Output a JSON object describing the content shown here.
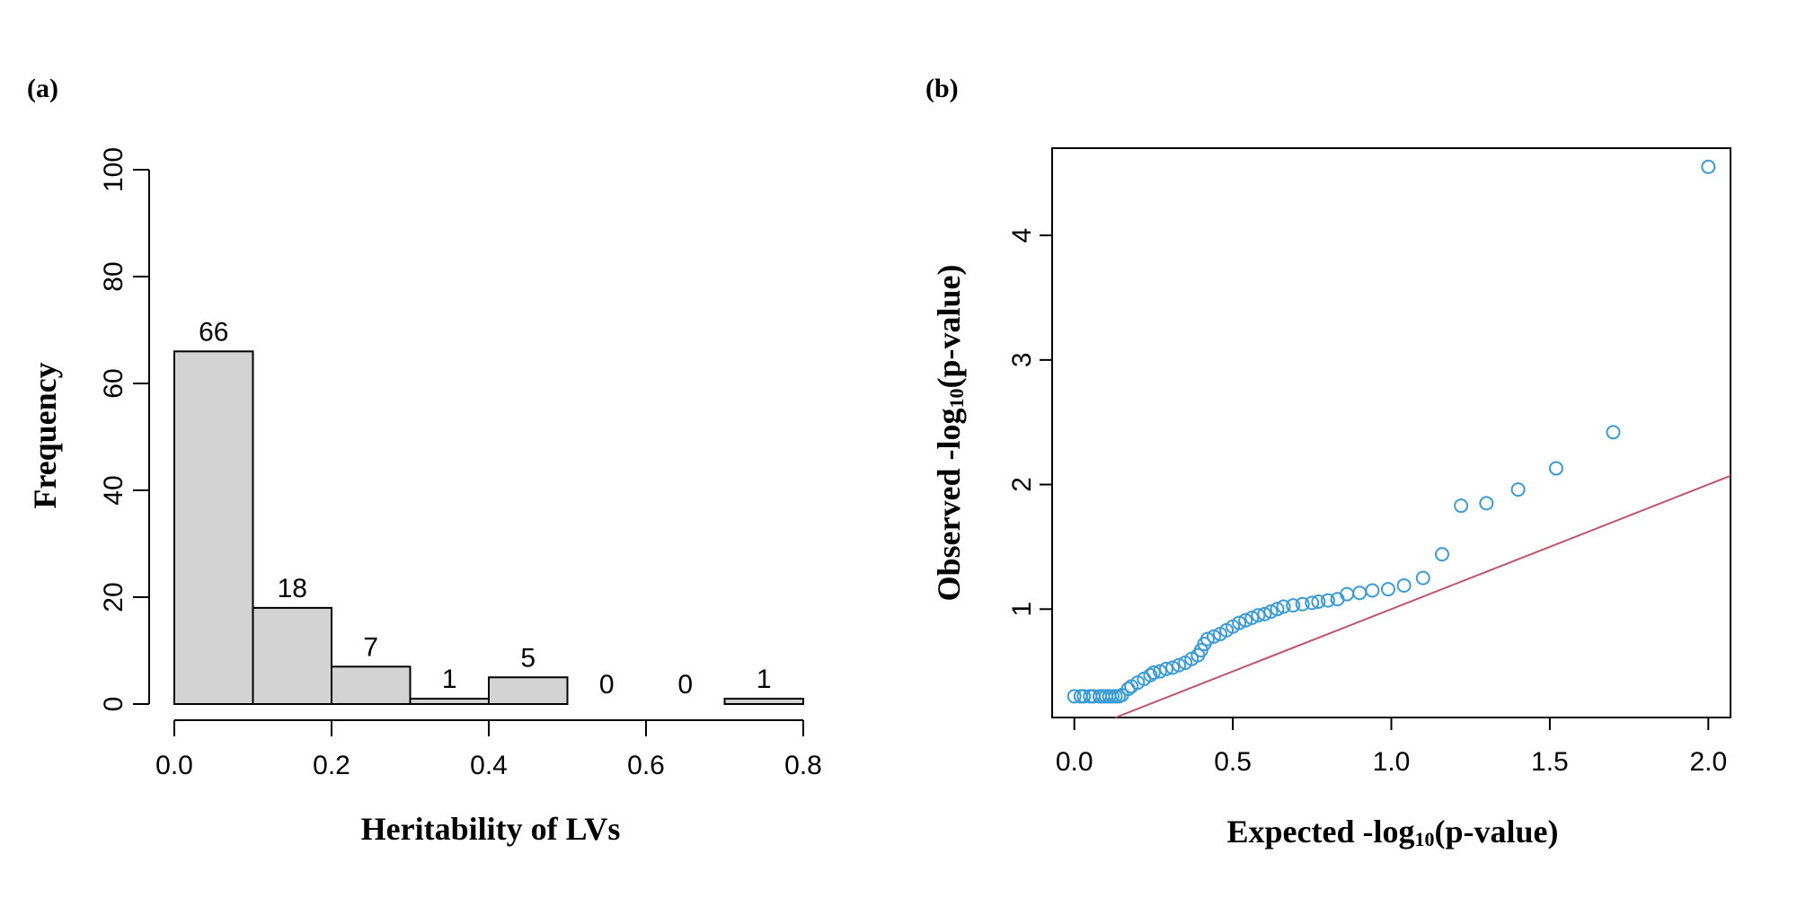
{
  "chart_data": [
    {
      "panel_label": "(a)",
      "type": "bar",
      "xlabel": "Heritability of LVs",
      "ylabel": "Frequency",
      "bins": [
        [
          0.0,
          0.1
        ],
        [
          0.1,
          0.2
        ],
        [
          0.2,
          0.3
        ],
        [
          0.3,
          0.4
        ],
        [
          0.4,
          0.5
        ],
        [
          0.5,
          0.6
        ],
        [
          0.6,
          0.7
        ],
        [
          0.7,
          0.8
        ]
      ],
      "values": [
        66,
        18,
        7,
        1,
        5,
        0,
        0,
        1
      ],
      "data_labels": [
        "66",
        "18",
        "7",
        "1",
        "5",
        "0",
        "0",
        "1"
      ],
      "xlim": [
        0,
        0.8
      ],
      "ylim": [
        0,
        100
      ],
      "xticks": [
        0.0,
        0.2,
        0.4,
        0.6,
        0.8
      ],
      "xtick_labels": [
        "0.0",
        "0.2",
        "0.4",
        "0.6",
        "0.8"
      ],
      "yticks": [
        0,
        20,
        40,
        60,
        80,
        100
      ],
      "ytick_labels": [
        "0",
        "20",
        "40",
        "60",
        "80",
        "100"
      ],
      "bar_color": "#d3d3d3"
    },
    {
      "panel_label": "(b)",
      "type": "scatter",
      "xlabel": "Expected -log10(p-value)",
      "xlabel_parts": [
        "Expected -log",
        "10",
        "(p-value)"
      ],
      "ylabel": "Observed -log10(p-value)",
      "ylabel_parts": [
        "Observed -log",
        "10",
        "(p-value)"
      ],
      "xlim": [
        -0.07,
        2.07
      ],
      "ylim": [
        0.13,
        4.7
      ],
      "xticks": [
        0.0,
        0.5,
        1.0,
        1.5,
        2.0
      ],
      "xtick_labels": [
        "0.0",
        "0.5",
        "1.0",
        "1.5",
        "2.0"
      ],
      "yticks": [
        1,
        2,
        3,
        4
      ],
      "ytick_labels": [
        "1",
        "2",
        "3",
        "4"
      ],
      "point_color": "#3a9bd5",
      "reference_line_color": "#c0546b",
      "reference_line": {
        "slope": 1,
        "intercept": 0
      },
      "points": [
        [
          0.0,
          0.3
        ],
        [
          0.02,
          0.3
        ],
        [
          0.03,
          0.3
        ],
        [
          0.05,
          0.3
        ],
        [
          0.06,
          0.3
        ],
        [
          0.08,
          0.3
        ],
        [
          0.09,
          0.3
        ],
        [
          0.1,
          0.3
        ],
        [
          0.11,
          0.3
        ],
        [
          0.12,
          0.3
        ],
        [
          0.13,
          0.3
        ],
        [
          0.14,
          0.3
        ],
        [
          0.15,
          0.31
        ],
        [
          0.17,
          0.36
        ],
        [
          0.18,
          0.38
        ],
        [
          0.2,
          0.41
        ],
        [
          0.22,
          0.44
        ],
        [
          0.24,
          0.47
        ],
        [
          0.25,
          0.49
        ],
        [
          0.27,
          0.5
        ],
        [
          0.29,
          0.52
        ],
        [
          0.31,
          0.53
        ],
        [
          0.33,
          0.55
        ],
        [
          0.35,
          0.57
        ],
        [
          0.37,
          0.6
        ],
        [
          0.39,
          0.63
        ],
        [
          0.4,
          0.67
        ],
        [
          0.41,
          0.72
        ],
        [
          0.42,
          0.76
        ],
        [
          0.44,
          0.78
        ],
        [
          0.46,
          0.8
        ],
        [
          0.48,
          0.83
        ],
        [
          0.5,
          0.86
        ],
        [
          0.52,
          0.89
        ],
        [
          0.54,
          0.91
        ],
        [
          0.56,
          0.93
        ],
        [
          0.58,
          0.95
        ],
        [
          0.6,
          0.96
        ],
        [
          0.62,
          0.98
        ],
        [
          0.64,
          1.0
        ],
        [
          0.66,
          1.02
        ],
        [
          0.69,
          1.03
        ],
        [
          0.72,
          1.04
        ],
        [
          0.75,
          1.05
        ],
        [
          0.77,
          1.06
        ],
        [
          0.8,
          1.07
        ],
        [
          0.83,
          1.08
        ],
        [
          0.86,
          1.12
        ],
        [
          0.9,
          1.13
        ],
        [
          0.94,
          1.15
        ],
        [
          0.99,
          1.16
        ],
        [
          1.04,
          1.19
        ],
        [
          1.1,
          1.25
        ],
        [
          1.16,
          1.44
        ],
        [
          1.22,
          1.83
        ],
        [
          1.3,
          1.85
        ],
        [
          1.4,
          1.96
        ],
        [
          1.52,
          2.13
        ],
        [
          1.7,
          2.42
        ],
        [
          2.0,
          4.55
        ]
      ]
    }
  ]
}
